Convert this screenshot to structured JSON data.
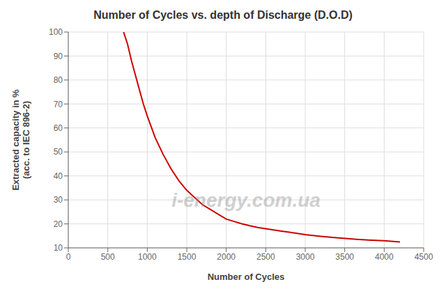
{
  "chart_data": {
    "type": "line",
    "title": "Number of Cycles vs. depth of Discharge (D.O.D)",
    "xlabel": "Number of Cycles",
    "ylabel": "Extracted capacity in %\n(acc. to IEC 896-2)",
    "x": [
      700,
      750,
      800,
      850,
      900,
      950,
      1000,
      1100,
      1200,
      1300,
      1400,
      1500,
      1600,
      1700,
      1800,
      1900,
      2000,
      2100,
      2200,
      2300,
      2400,
      2500,
      2600,
      2700,
      2800,
      2900,
      3000,
      3200,
      3400,
      3600,
      3800,
      4000,
      4200
    ],
    "values": [
      100,
      95,
      88,
      82,
      76,
      70,
      65,
      56,
      49,
      43,
      38,
      34,
      31,
      28,
      26,
      24,
      22,
      21,
      20,
      19.2,
      18.5,
      18.0,
      17.5,
      17.0,
      16.5,
      16.0,
      15.5,
      14.8,
      14.2,
      13.7,
      13.3,
      13.0,
      12.5
    ],
    "color": "#cc0000",
    "xlim": [
      0,
      4500
    ],
    "ylim": [
      10,
      100
    ],
    "xticks": [
      0,
      500,
      1000,
      1500,
      2000,
      2500,
      3000,
      3500,
      4000,
      4500
    ],
    "yticks": [
      10,
      20,
      30,
      40,
      50,
      60,
      70,
      80,
      90,
      100
    ],
    "grid": true,
    "annotations": [
      "i-energy.com.ua"
    ]
  }
}
